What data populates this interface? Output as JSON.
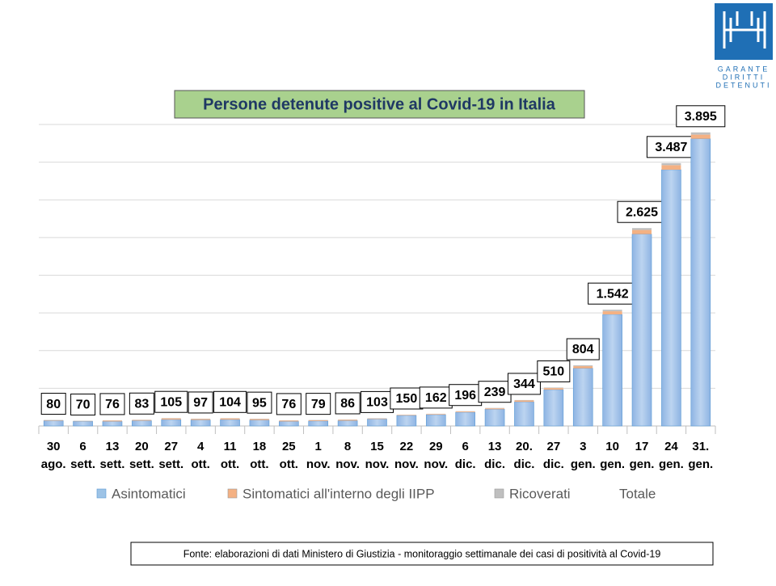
{
  "chart_data": {
    "type": "stacked_bar",
    "title": "Persone detenute positive al Covid-19 in Italia",
    "categories": [
      [
        "30",
        "ago."
      ],
      [
        "6",
        "sett."
      ],
      [
        "13",
        "sett."
      ],
      [
        "20",
        "sett."
      ],
      [
        "27",
        "sett."
      ],
      [
        "4",
        "ott."
      ],
      [
        "11",
        "ott."
      ],
      [
        "18",
        "ott."
      ],
      [
        "25",
        "ott."
      ],
      [
        "1",
        "nov."
      ],
      [
        "8",
        "nov."
      ],
      [
        "15",
        "nov."
      ],
      [
        "22",
        "nov."
      ],
      [
        "29",
        "nov."
      ],
      [
        "6",
        "dic."
      ],
      [
        "13",
        "dic."
      ],
      [
        "20.",
        "dic."
      ],
      [
        "27",
        "dic."
      ],
      [
        "3",
        "gen."
      ],
      [
        "10",
        "gen."
      ],
      [
        "17",
        "gen."
      ],
      [
        "24",
        "gen."
      ],
      [
        "31.",
        "gen."
      ]
    ],
    "series": [
      {
        "name": "Asintomatici",
        "color": "#9dc3e6",
        "values": [
          70,
          62,
          60,
          70,
          85,
          80,
          85,
          78,
          60,
          66,
          70,
          92,
          140,
          150,
          182,
          222,
          320,
          482,
          765,
          1480,
          2545,
          3400,
          3810
        ]
      },
      {
        "name": "Sintomatici all'interno degli IIPP",
        "color": "#f4b183",
        "values": [
          6,
          4,
          12,
          9,
          15,
          13,
          15,
          13,
          12,
          9,
          12,
          7,
          6,
          8,
          10,
          12,
          18,
          20,
          28,
          42,
          55,
          60,
          55
        ]
      },
      {
        "name": "Ricoverati",
        "color": "#bfbfbf",
        "values": [
          4,
          4,
          4,
          4,
          5,
          4,
          4,
          4,
          4,
          4,
          4,
          4,
          4,
          4,
          4,
          5,
          6,
          8,
          11,
          20,
          25,
          27,
          30
        ]
      }
    ],
    "totals": {
      "name": "Totale",
      "values": [
        80,
        70,
        76,
        83,
        105,
        97,
        104,
        95,
        76,
        79,
        86,
        103,
        150,
        162,
        196,
        239,
        344,
        510,
        804,
        1542,
        2625,
        3487,
        3895
      ],
      "value_labels": [
        "80",
        "70",
        "76",
        "83",
        "105",
        "97",
        "104",
        "95",
        "76",
        "79",
        "86",
        "103",
        "150",
        "162",
        "196",
        "239",
        "344",
        "510",
        "804",
        "1.542",
        "2.625",
        "3.487",
        "3.895"
      ]
    },
    "ylim": [
      0,
      4000
    ],
    "yticks": [
      0,
      500,
      1000,
      1500,
      2000,
      2500,
      3000,
      3500,
      4000
    ],
    "grid": true,
    "legend": "bottom"
  },
  "logo": {
    "lines": [
      "GARANTE",
      "DIRITTI",
      "DETENUTI"
    ]
  },
  "source": "Fonte: elaborazioni di dati Ministero di Giustizia - monitoraggio settimanale dei casi di positività al Covid-19"
}
